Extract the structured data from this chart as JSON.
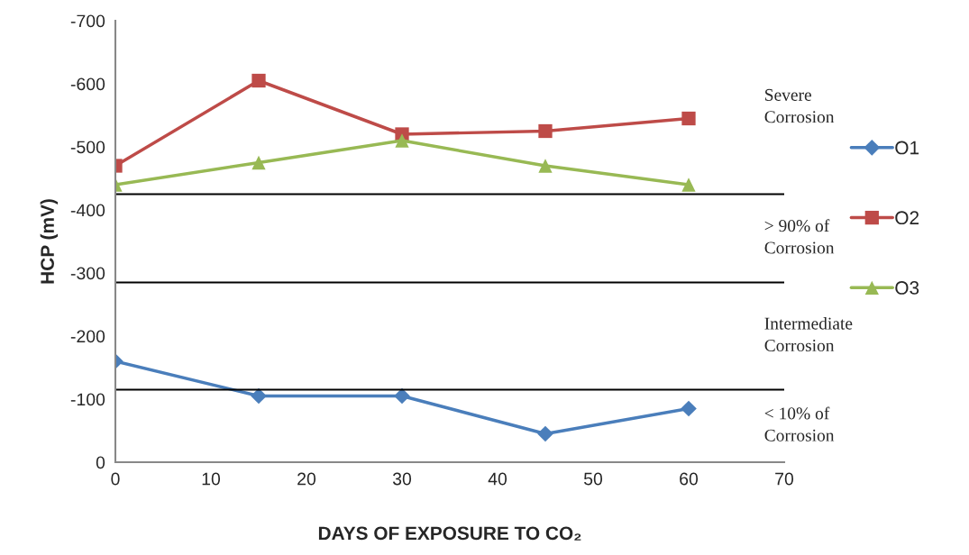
{
  "chart_data": {
    "type": "line",
    "xlabel": "DAYS OF EXPOSURE TO CO₂",
    "ylabel": "HCP (mV)",
    "x": [
      0,
      15,
      30,
      45,
      60
    ],
    "series": [
      {
        "name": "O1",
        "color": "#4a7ebb",
        "marker": "diamond",
        "values": [
          -160,
          -105,
          -105,
          -45,
          -85
        ]
      },
      {
        "name": "O2",
        "color": "#be4b48",
        "marker": "square",
        "values": [
          -470,
          -605,
          -520,
          -525,
          -545
        ]
      },
      {
        "name": "O3",
        "color": "#98b954",
        "marker": "triangle",
        "values": [
          -440,
          -475,
          -510,
          -470,
          -440
        ]
      }
    ],
    "xlim": [
      0,
      70
    ],
    "xticks": [
      0,
      10,
      20,
      30,
      40,
      50,
      60,
      70
    ],
    "ylim": [
      0,
      -700
    ],
    "yticks": [
      0,
      -100,
      -200,
      -300,
      -400,
      -500,
      -600,
      -700
    ],
    "ref_lines": [
      {
        "axis": "y",
        "value": -425,
        "color": "#000000"
      },
      {
        "axis": "y",
        "value": -285,
        "color": "#000000"
      },
      {
        "axis": "y",
        "value": -115,
        "color": "#000000"
      }
    ],
    "annotations": [
      "Severe\nCorrosion",
      "> 90% of\nCorrosion",
      "Intermediate\nCorrosion",
      "< 10% of\nCorrosion"
    ],
    "grid": false,
    "legend": "right",
    "line_style": "solid"
  }
}
